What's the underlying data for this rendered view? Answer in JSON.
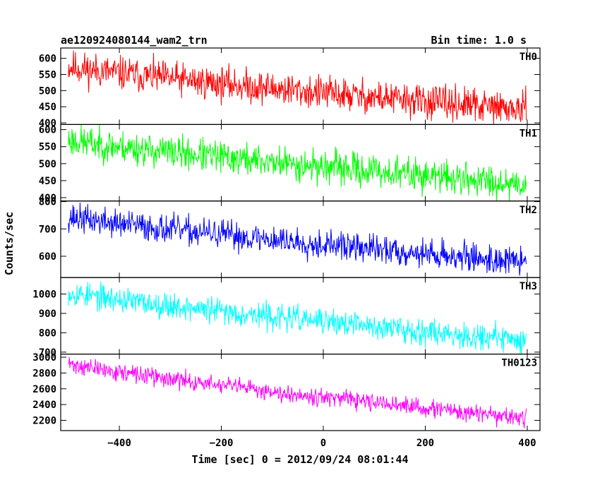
{
  "header": {
    "title": "ae120924080144_wam2_trn",
    "bin_time": "Bin time: 1.0 s"
  },
  "chart_data": {
    "type": "line",
    "x_range": [
      -515,
      425
    ],
    "x_data_span": [
      -500,
      398
    ],
    "x_ticks": [
      -400,
      -200,
      0,
      200,
      400
    ],
    "xlabel": "Time [sec] 0 = 2012/09/24 08:01:44",
    "ylabel": "Counts/sec",
    "grid": false,
    "panels": [
      {
        "name": "TH0",
        "color": "#ff0000",
        "ylim": [
          395,
          632
        ],
        "y_ticks": [
          400,
          450,
          500,
          550,
          600
        ],
        "start_level": 575,
        "end_level": 440,
        "noise": 26,
        "seed": 11
      },
      {
        "name": "TH1",
        "color": "#00ff00",
        "ylim": [
          390,
          615
        ],
        "y_ticks": [
          400,
          450,
          500,
          550,
          600
        ],
        "start_level": 570,
        "end_level": 440,
        "noise": 24,
        "seed": 23
      },
      {
        "name": "TH2",
        "color": "#0000ff",
        "ylim": [
          522,
          802
        ],
        "y_ticks": [
          600,
          700,
          800
        ],
        "start_level": 745,
        "end_level": 578,
        "noise": 26,
        "seed": 37
      },
      {
        "name": "TH3",
        "color": "#00ffff",
        "ylim": [
          690,
          1085
        ],
        "y_ticks": [
          700,
          800,
          900,
          1000
        ],
        "start_level": 1010,
        "end_level": 760,
        "noise": 33,
        "seed": 53
      },
      {
        "name": "TH0123",
        "color": "#ff00ff",
        "ylim": [
          2070,
          3040
        ],
        "y_ticks": [
          2200,
          2400,
          2600,
          2800,
          3000
        ],
        "start_level": 2920,
        "end_level": 2220,
        "noise": 55,
        "seed": 71
      }
    ]
  }
}
